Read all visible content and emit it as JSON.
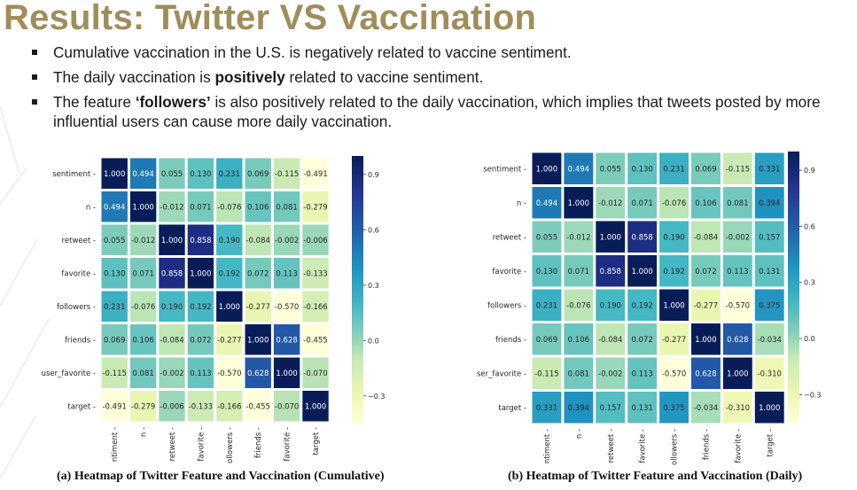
{
  "title": "Results: Twitter VS Vaccination",
  "bullets": [
    {
      "pre": "Cumulative vaccination in the U.S. is negatively related to vaccine sentiment.",
      "bold": "",
      "post": ""
    },
    {
      "pre": "The daily vaccination is ",
      "bold": "positively",
      "post": " related to vaccine sentiment."
    },
    {
      "pre": "The feature ",
      "bold": "‘followers’",
      "post": " is also positively related to the daily vaccination, which implies that tweets posted by more influential users can cause more daily vaccination."
    }
  ],
  "colors": {
    "title": "#a08d5a"
  },
  "chart_data": [
    {
      "type": "heatmap",
      "caption": "(a) Heatmap of Twitter Feature and Vaccination (Cumulative)",
      "row_labels": [
        "sentiment",
        "n",
        "retweet",
        "favorite",
        "followers",
        "friends",
        "user_favorite",
        "target"
      ],
      "col_labels": [
        "ntiment",
        "n",
        "retweet",
        "favorite",
        "ollowers",
        "friends",
        "favorite",
        "target"
      ],
      "values": [
        [
          1.0,
          0.494,
          0.055,
          0.13,
          0.231,
          0.069,
          -0.115,
          -0.491
        ],
        [
          0.494,
          1.0,
          -0.012,
          0.071,
          -0.076,
          0.106,
          0.081,
          -0.279
        ],
        [
          0.055,
          -0.012,
          1.0,
          0.858,
          0.19,
          -0.084,
          -0.002,
          -0.006
        ],
        [
          0.13,
          0.071,
          0.858,
          1.0,
          0.192,
          0.072,
          0.113,
          -0.133
        ],
        [
          0.231,
          -0.076,
          0.19,
          0.192,
          1.0,
          -0.277,
          -0.57,
          -0.166
        ],
        [
          0.069,
          0.106,
          -0.084,
          0.072,
          -0.277,
          1.0,
          0.628,
          -0.455
        ],
        [
          -0.115,
          0.081,
          -0.002,
          0.113,
          -0.57,
          0.628,
          1.0,
          -0.07
        ],
        [
          -0.491,
          -0.279,
          -0.006,
          -0.133,
          -0.166,
          -0.455,
          -0.07,
          1.0
        ]
      ],
      "colorbar_ticks": [
        "0.9",
        "0.6",
        "0.3",
        "0.0",
        "−0.3"
      ],
      "colorbar_tick_values": [
        0.9,
        0.6,
        0.3,
        0.0,
        -0.3
      ],
      "colorbar_range": [
        -0.45,
        1.0
      ],
      "colormap": "YlGnBu"
    },
    {
      "type": "heatmap",
      "caption": "(b) Heatmap of Twitter Feature and Vaccination (Daily)",
      "row_labels": [
        "sentiment",
        "n",
        "retweet",
        "favorite",
        "followers",
        "friends",
        "ser_favorite",
        "target"
      ],
      "col_labels": [
        "ntiment",
        "n",
        "retweet",
        "favorite",
        "ollowers",
        "friends",
        "favorite",
        "target"
      ],
      "values": [
        [
          1.0,
          0.494,
          0.055,
          0.13,
          0.231,
          0.069,
          -0.115,
          0.331
        ],
        [
          0.494,
          1.0,
          -0.012,
          0.071,
          -0.076,
          0.106,
          0.081,
          0.394
        ],
        [
          0.055,
          -0.012,
          1.0,
          0.858,
          0.19,
          -0.084,
          -0.002,
          0.157
        ],
        [
          0.13,
          0.071,
          0.858,
          1.0,
          0.192,
          0.072,
          0.113,
          0.131
        ],
        [
          0.231,
          -0.076,
          0.19,
          0.192,
          1.0,
          -0.277,
          -0.57,
          0.375
        ],
        [
          0.069,
          0.106,
          -0.084,
          0.072,
          -0.277,
          1.0,
          0.628,
          -0.034
        ],
        [
          -0.115,
          0.081,
          -0.002,
          0.113,
          -0.57,
          0.628,
          1.0,
          -0.31
        ],
        [
          0.331,
          0.394,
          0.157,
          0.131,
          0.375,
          -0.034,
          -0.31,
          1.0
        ]
      ],
      "colorbar_ticks": [
        "0.9",
        "0.6",
        "0.3",
        "0.0",
        "−0.3"
      ],
      "colorbar_tick_values": [
        0.9,
        0.6,
        0.3,
        0.0,
        -0.3
      ],
      "colorbar_range": [
        -0.45,
        1.0
      ],
      "colormap": "YlGnBu"
    }
  ]
}
